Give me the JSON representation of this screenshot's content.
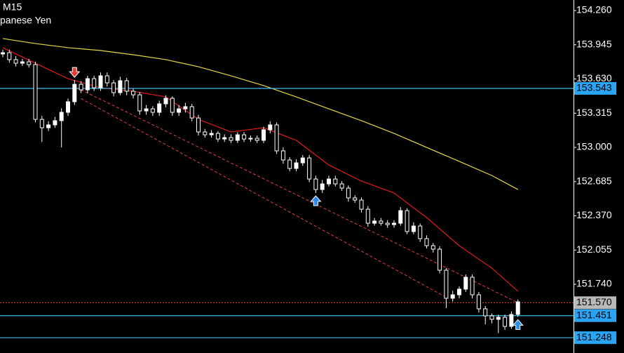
{
  "chart_data": {
    "type": "candlestick",
    "title": "M15",
    "subtitle": "panese Yen",
    "ylim": [
      151.107,
      154.357
    ],
    "yticks": [
      {
        "value": 154.26,
        "label": "154.260"
      },
      153.945,
      {
        "value": 153.63,
        "label": "153.630"
      },
      153.315,
      {
        "value": 153,
        "label": "153.000"
      },
      152.685,
      {
        "value": 152.37,
        "label": "152.370"
      },
      152.055,
      {
        "value": 151.74,
        "label": "151.740"
      }
    ],
    "up_color": "#ffffff",
    "down_color": "#000000",
    "wick_color": "#ffffff",
    "candles": [
      [
        153.86,
        153.9,
        153.83,
        153.872
      ],
      [
        153.872,
        153.9,
        153.78,
        153.808
      ],
      [
        153.808,
        153.84,
        153.745,
        153.775
      ],
      [
        153.775,
        153.815,
        153.75,
        153.788
      ],
      [
        153.788,
        153.815,
        153.735,
        153.762
      ],
      [
        153.762,
        153.79,
        153.23,
        153.258
      ],
      [
        153.258,
        153.29,
        153.05,
        153.181
      ],
      [
        153.181,
        153.24,
        153.15,
        153.207
      ],
      [
        153.207,
        153.28,
        153.18,
        153.246
      ],
      [
        153.246,
        153.36,
        153.0,
        153.323
      ],
      [
        153.323,
        153.45,
        153.29,
        153.42
      ],
      [
        153.42,
        153.62,
        153.39,
        153.581
      ],
      [
        153.581,
        153.61,
        153.5,
        153.53
      ],
      [
        153.53,
        153.66,
        153.5,
        153.633
      ],
      [
        153.633,
        153.66,
        153.52,
        153.549
      ],
      [
        153.549,
        153.69,
        153.52,
        153.659
      ],
      [
        153.659,
        153.69,
        153.56,
        153.594
      ],
      [
        153.594,
        153.62,
        153.47,
        153.504
      ],
      [
        153.504,
        153.65,
        153.48,
        153.614
      ],
      [
        153.614,
        153.64,
        153.48,
        153.517
      ],
      [
        153.517,
        153.54,
        153.45,
        153.484
      ],
      [
        153.484,
        153.51,
        153.3,
        153.336
      ],
      [
        153.336,
        153.39,
        153.3,
        153.355
      ],
      [
        153.355,
        153.38,
        153.29,
        153.323
      ],
      [
        153.323,
        153.43,
        153.29,
        153.401
      ],
      [
        153.401,
        153.48,
        153.37,
        153.452
      ],
      [
        153.452,
        153.47,
        153.29,
        153.323
      ],
      [
        153.323,
        153.39,
        153.29,
        153.355
      ],
      [
        153.355,
        153.41,
        153.32,
        153.375
      ],
      [
        153.375,
        153.4,
        153.24,
        153.271
      ],
      [
        153.271,
        153.3,
        153.11,
        153.142
      ],
      [
        153.142,
        153.17,
        153.09,
        153.116
      ],
      [
        153.116,
        153.16,
        153.09,
        153.129
      ],
      [
        153.129,
        153.15,
        153.05,
        153.077
      ],
      [
        153.077,
        153.12,
        153.05,
        153.09
      ],
      [
        153.09,
        153.12,
        153.04,
        153.065
      ],
      [
        153.065,
        153.14,
        153.04,
        153.116
      ],
      [
        153.116,
        153.14,
        153.05,
        153.077
      ],
      [
        153.077,
        153.11,
        153.05,
        153.084
      ],
      [
        153.084,
        153.11,
        153.04,
        153.065
      ],
      [
        153.065,
        153.19,
        153.04,
        153.162
      ],
      [
        153.162,
        153.24,
        153.13,
        153.207
      ],
      [
        153.207,
        153.23,
        152.94,
        152.968
      ],
      [
        152.968,
        153.0,
        152.85,
        152.884
      ],
      [
        152.884,
        152.91,
        152.78,
        152.806
      ],
      [
        152.806,
        152.89,
        152.78,
        152.858
      ],
      [
        152.858,
        152.93,
        152.83,
        152.903
      ],
      [
        152.903,
        152.93,
        152.68,
        152.709
      ],
      [
        152.709,
        152.74,
        152.58,
        152.612
      ],
      [
        152.612,
        152.7,
        152.58,
        152.664
      ],
      [
        152.664,
        152.74,
        152.64,
        152.709
      ],
      [
        152.709,
        152.74,
        152.64,
        152.664
      ],
      [
        152.664,
        152.69,
        152.6,
        152.625
      ],
      [
        152.625,
        152.65,
        152.5,
        152.535
      ],
      [
        152.535,
        152.56,
        152.49,
        152.515
      ],
      [
        152.515,
        152.54,
        152.4,
        152.431
      ],
      [
        152.431,
        152.46,
        152.27,
        152.302
      ],
      [
        152.302,
        152.35,
        152.28,
        152.322
      ],
      [
        152.322,
        152.35,
        152.28,
        152.302
      ],
      [
        152.302,
        152.33,
        152.26,
        152.289
      ],
      [
        152.289,
        152.33,
        152.26,
        152.302
      ],
      [
        152.302,
        152.45,
        152.28,
        152.418
      ],
      [
        152.418,
        152.44,
        152.2,
        152.225
      ],
      [
        152.225,
        152.31,
        152.2,
        152.276
      ],
      [
        152.276,
        152.3,
        152.13,
        152.16
      ],
      [
        152.16,
        152.19,
        152.07,
        152.095
      ],
      [
        152.095,
        152.12,
        152.03,
        152.063
      ],
      [
        152.063,
        152.09,
        151.84,
        151.869
      ],
      [
        151.869,
        151.89,
        151.52,
        151.611
      ],
      [
        151.611,
        151.68,
        151.58,
        151.643
      ],
      [
        151.643,
        151.72,
        151.61,
        151.695
      ],
      [
        151.695,
        151.83,
        151.67,
        151.805
      ],
      [
        151.805,
        151.83,
        151.61,
        151.643
      ],
      [
        151.643,
        151.67,
        151.48,
        151.514
      ],
      [
        151.514,
        151.54,
        151.37,
        151.449
      ],
      [
        151.449,
        151.47,
        151.38,
        151.417
      ],
      [
        151.417,
        151.46,
        151.29,
        151.436
      ],
      [
        151.436,
        151.46,
        151.32,
        151.352
      ],
      [
        151.352,
        151.49,
        151.33,
        151.462
      ],
      [
        151.462,
        151.6,
        151.44,
        151.578
      ]
    ],
    "moving_averages": [
      {
        "color": "#e01b1b",
        "x": [
          0,
          5,
          10,
          15,
          20,
          25,
          30,
          35,
          40,
          45,
          50,
          55,
          60,
          65,
          70,
          75,
          79
        ],
        "values": [
          153.918,
          153.775,
          153.633,
          153.549,
          153.517,
          153.465,
          153.258,
          153.142,
          153.181,
          153.065,
          152.838,
          152.69,
          152.58,
          152.354,
          152.095,
          151.889,
          151.675
        ]
      },
      {
        "color": "#e6d84a",
        "x": [
          0,
          5,
          10,
          15,
          20,
          25,
          30,
          35,
          40,
          45,
          50,
          55,
          60,
          65,
          70,
          75,
          79
        ],
        "values": [
          154.002,
          153.956,
          153.918,
          153.892,
          153.853,
          153.808,
          153.743,
          153.659,
          153.569,
          153.465,
          153.355,
          153.246,
          153.129,
          153.0,
          152.871,
          152.741,
          152.612
        ]
      }
    ],
    "trendlines": [
      {
        "color": "#e0403a",
        "x": [
          12,
          79
        ],
        "values": [
          153.53,
          151.57
        ]
      },
      {
        "color": "#e0403a",
        "x": [
          12,
          68
        ],
        "values": [
          153.45,
          151.62
        ]
      }
    ],
    "sell_arrows": [
      11
    ],
    "buy_arrows": [
      48,
      79
    ],
    "levels": [
      {
        "value": 153.543,
        "color": "#3db8ea",
        "box": "#2aa4f4"
      },
      {
        "value": 151.451,
        "color": "#3db8ea",
        "box": "#2aa4f4"
      },
      {
        "value": 151.248,
        "color": "#3db8ea",
        "box": "#2aa4f4"
      }
    ],
    "current_price": {
      "value": 151.57,
      "label": "151.570",
      "color": "#e0403a",
      "box": "#b8b8b8"
    }
  }
}
